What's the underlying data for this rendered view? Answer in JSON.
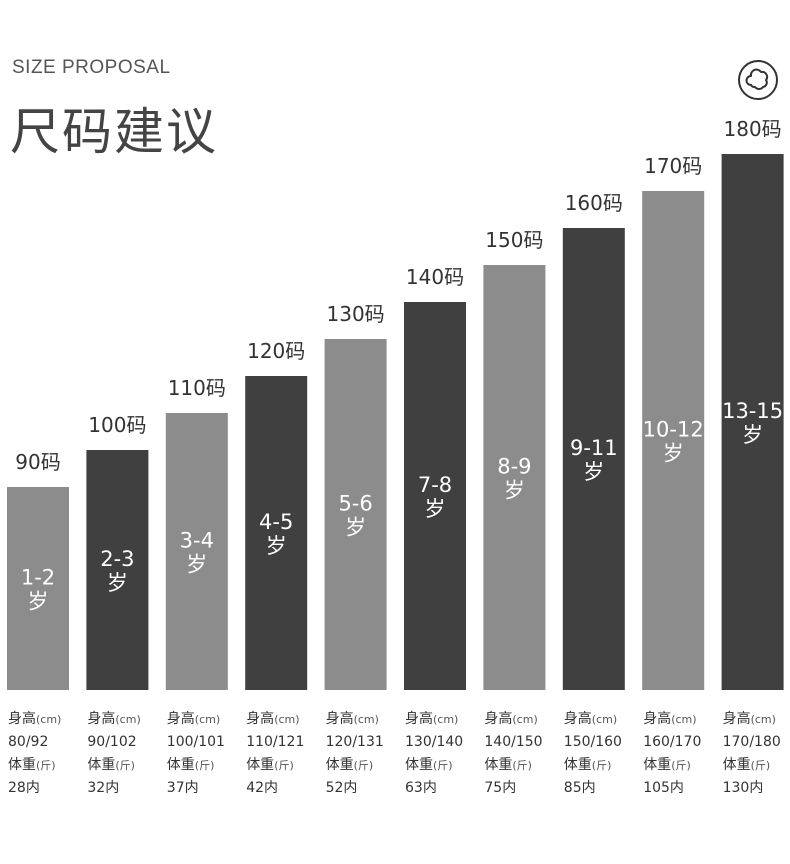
{
  "header": {
    "subtitle": "SIZE PROPOSAL",
    "title": "尺码建议",
    "logo_icon": "flower-cloud-icon"
  },
  "colors": {
    "light_bar": "#8c8c8c",
    "dark_bar": "#404040"
  },
  "chart_data": {
    "type": "bar",
    "categories": [
      "90码",
      "100码",
      "110码",
      "120码",
      "130码",
      "140码",
      "150码",
      "160码",
      "170码",
      "180码"
    ],
    "values": [
      90,
      100,
      110,
      120,
      130,
      140,
      150,
      160,
      170,
      180
    ],
    "ylim": [
      0,
      180
    ],
    "bar_labels": [
      [
        "1-2",
        "岁"
      ],
      [
        "2-3",
        "岁"
      ],
      [
        "3-4",
        "岁"
      ],
      [
        "4-5",
        "岁"
      ],
      [
        "5-6",
        "岁"
      ],
      [
        "7-8",
        "岁"
      ],
      [
        "8-9",
        "岁"
      ],
      [
        "9-11",
        "岁"
      ],
      [
        "10-12",
        "岁"
      ],
      [
        "13-15",
        "岁"
      ]
    ],
    "bar_shades": [
      "light",
      "dark",
      "light",
      "dark",
      "light",
      "dark",
      "light",
      "dark",
      "light",
      "dark"
    ],
    "xlabel": "",
    "ylabel": ""
  },
  "info_labels": {
    "height_label": "身高",
    "height_unit": "(cm)",
    "weight_label": "体重",
    "weight_unit": "(斤)"
  },
  "columns": [
    {
      "height": "80/92",
      "weight": "28内"
    },
    {
      "height": "90/102",
      "weight": "32内"
    },
    {
      "height": "100/101",
      "weight": "37内"
    },
    {
      "height": "110/121",
      "weight": "42内"
    },
    {
      "height": "120/131",
      "weight": "52内"
    },
    {
      "height": "130/140",
      "weight": "63内"
    },
    {
      "height": "140/150",
      "weight": "75内"
    },
    {
      "height": "150/160",
      "weight": "85内"
    },
    {
      "height": "160/170",
      "weight": "105内"
    },
    {
      "height": "170/180",
      "weight": "130内"
    }
  ]
}
